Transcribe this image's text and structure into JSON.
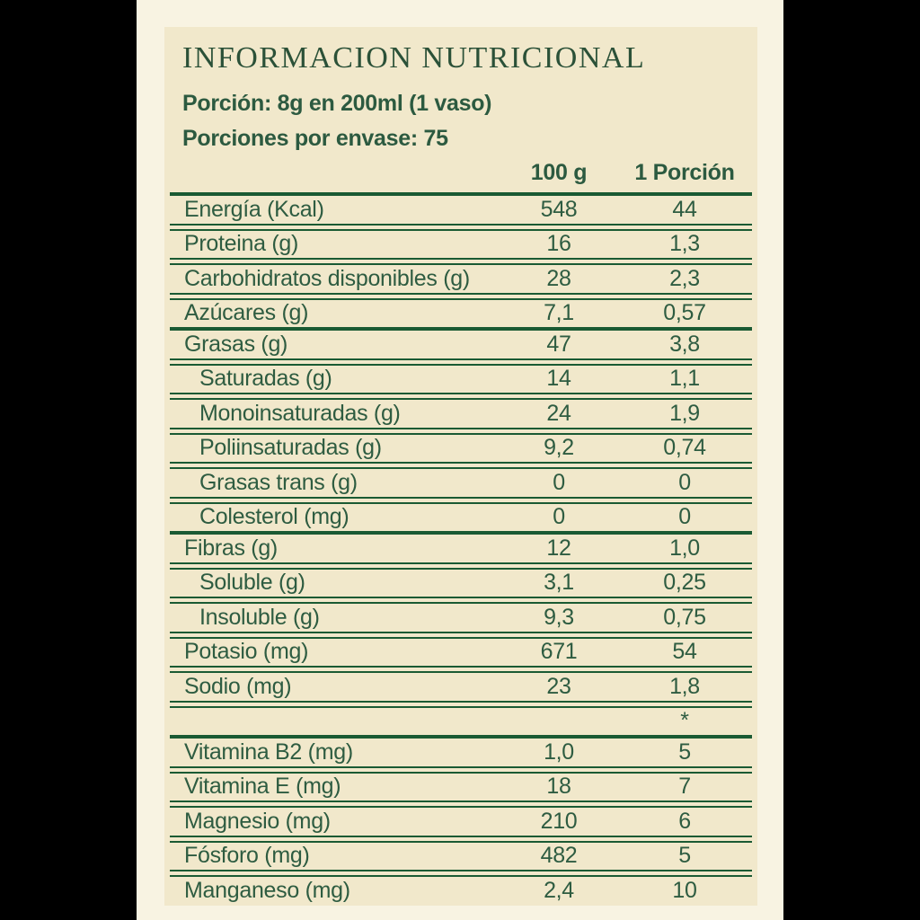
{
  "label": {
    "title": "INFORMACION NUTRICIONAL",
    "serving_size": "Porción: 8g en 200ml (1 vaso)",
    "servings_per_container": "Porciones por envase: 75",
    "columns": [
      "100 g",
      "1 Porción"
    ],
    "rows": [
      {
        "label": "Energía (Kcal)",
        "per_100g": "548",
        "per_porcion": "44",
        "indent": false,
        "separator_above": "thick"
      },
      {
        "label": "Proteina (g)",
        "per_100g": "16",
        "per_porcion": "1,3",
        "indent": false,
        "separator_above": "double"
      },
      {
        "label": "Carbohidratos disponibles (g)",
        "per_100g": "28",
        "per_porcion": "2,3",
        "indent": false,
        "separator_above": "double"
      },
      {
        "label": "Azúcares (g)",
        "per_100g": "7,1",
        "per_porcion": "0,57",
        "indent": false,
        "separator_above": "double"
      },
      {
        "label": "Grasas (g)",
        "per_100g": "47",
        "per_porcion": "3,8",
        "indent": false,
        "separator_above": "thick"
      },
      {
        "label": "Saturadas (g)",
        "per_100g": "14",
        "per_porcion": "1,1",
        "indent": true,
        "separator_above": "double"
      },
      {
        "label": "Monoinsaturadas (g)",
        "per_100g": "24",
        "per_porcion": "1,9",
        "indent": true,
        "separator_above": "double"
      },
      {
        "label": "Poliinsaturadas (g)",
        "per_100g": "9,2",
        "per_porcion": "0,74",
        "indent": true,
        "separator_above": "double"
      },
      {
        "label": "Grasas trans (g)",
        "per_100g": "0",
        "per_porcion": "0",
        "indent": true,
        "separator_above": "double"
      },
      {
        "label": "Colesterol (mg)",
        "per_100g": "0",
        "per_porcion": "0",
        "indent": true,
        "separator_above": "double"
      },
      {
        "label": "Fibras (g)",
        "per_100g": "12",
        "per_porcion": "1,0",
        "indent": false,
        "separator_above": "thick"
      },
      {
        "label": "Soluble (g)",
        "per_100g": "3,1",
        "per_porcion": "0,25",
        "indent": true,
        "separator_above": "double"
      },
      {
        "label": "Insoluble (g)",
        "per_100g": "9,3",
        "per_porcion": "0,75",
        "indent": true,
        "separator_above": "double"
      },
      {
        "label": "Potasio (mg)",
        "per_100g": "671",
        "per_porcion": "54",
        "indent": false,
        "separator_above": "double"
      },
      {
        "label": "Sodio (mg)",
        "per_100g": "23",
        "per_porcion": "1,8",
        "indent": false,
        "separator_above": "double"
      },
      {
        "label": "",
        "per_100g": "",
        "per_porcion": "*",
        "indent": false,
        "separator_above": "double"
      },
      {
        "label": "Vitamina B2 (mg)",
        "per_100g": "1,0",
        "per_porcion": "5",
        "indent": false,
        "separator_above": "thick"
      },
      {
        "label": "Vitamina E (mg)",
        "per_100g": "18",
        "per_porcion": "7",
        "indent": false,
        "separator_above": "double"
      },
      {
        "label": "Magnesio (mg)",
        "per_100g": "210",
        "per_porcion": "6",
        "indent": false,
        "separator_above": "double"
      },
      {
        "label": "Fósforo (mg)",
        "per_100g": "482",
        "per_porcion": "5",
        "indent": false,
        "separator_above": "double"
      },
      {
        "label": "Manganeso (mg)",
        "per_100g": "2,4",
        "per_porcion": "10",
        "indent": false,
        "separator_above": "double"
      }
    ]
  },
  "colors": {
    "outer_background": "#000000",
    "backdrop": "#f8f3e2",
    "card_background": "#f1e8cb",
    "rule_green": "#1a5a33",
    "text_green": "#2e5c41",
    "title_green": "#2b5138"
  }
}
